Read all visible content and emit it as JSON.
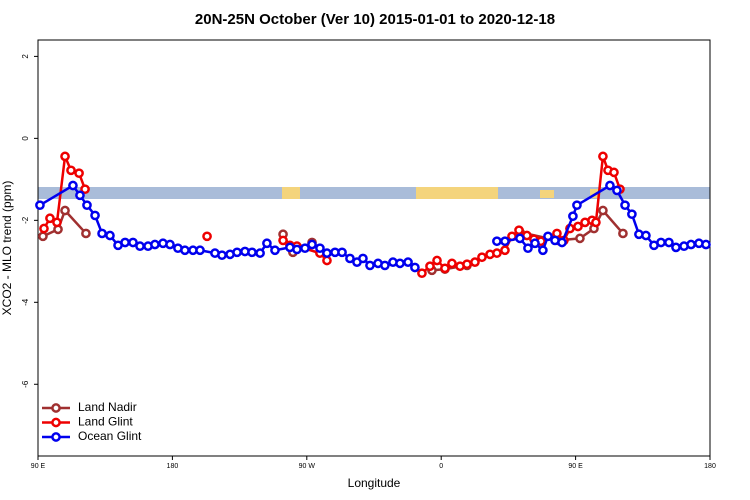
{
  "chart_data": {
    "type": "line",
    "title": "20N-25N October (Ver 10)   2015-01-01 to 2020-12-18",
    "xlabel": "Longitude",
    "ylabel": "XCO2 - MLO trend (ppm)",
    "xlim": [
      90,
      540
    ],
    "ylim": [
      -7.75,
      2.4
    ],
    "xticks": [
      {
        "value": 90,
        "label": "90 E"
      },
      {
        "value": 180,
        "label": "180"
      },
      {
        "value": 270,
        "label": "90 W"
      },
      {
        "value": 360,
        "label": "0"
      },
      {
        "value": 450,
        "label": "90 E"
      },
      {
        "value": 540,
        "label": "180"
      }
    ],
    "yticks": [
      -6,
      -4,
      -2,
      0,
      2
    ],
    "legend": "bottomleft",
    "series": [
      {
        "name": "Land Nadir",
        "color": "#a03030",
        "x": [
          93.3,
          103.4,
          108.1,
          122.1,
          null,
          254.1,
          260.7,
          273.5,
          null,
          353.8,
          362.5,
          377.3,
          null,
          412.7,
          438.2,
          452.9,
          462.3,
          468.3,
          481.7
        ],
        "values": [
          -2.39,
          -2.22,
          -1.76,
          -2.32,
          null,
          -2.34,
          -2.78,
          -2.54,
          null,
          -3.22,
          -3.19,
          -3.1,
          null,
          -2.29,
          -2.49,
          -2.44,
          -2.2,
          -1.76,
          -2.32
        ]
      },
      {
        "name": "Land Glint",
        "color": "#ee0000",
        "x": [
          94.0,
          98.0,
          102.7,
          108.1,
          112.1,
          117.5,
          121.5,
          null,
          203.2,
          null,
          254.1,
          258.7,
          263.4,
          278.8,
          283.5,
          null,
          347.1,
          352.5,
          357.2,
          362.5,
          367.2,
          372.6,
          377.3,
          382.6,
          387.3,
          392.7,
          397.3,
          402.7,
          407.4,
          412.1,
          417.4,
          422.1,
          426.8,
          437.5,
          442.2,
          446.2,
          451.6,
          456.3,
          461.0,
          463.6,
          468.3,
          471.7,
          475.7,
          479.7
        ],
        "values": [
          -2.2,
          -1.95,
          -2.05,
          -0.44,
          -0.78,
          -0.85,
          -1.24,
          null,
          -2.39,
          null,
          -2.49,
          -2.61,
          -2.63,
          -2.8,
          -2.98,
          null,
          -3.29,
          -3.12,
          -2.98,
          -3.17,
          -3.05,
          -3.12,
          -3.07,
          -3.02,
          -2.9,
          -2.83,
          -2.8,
          -2.73,
          -2.39,
          -2.24,
          -2.37,
          -2.46,
          -2.51,
          -2.32,
          -2.49,
          -2.2,
          -2.15,
          -2.05,
          -2.0,
          -2.05,
          -0.44,
          -0.78,
          -0.83,
          -1.24
        ]
      },
      {
        "name": "Ocean Glint",
        "color": "#0000ee",
        "x": [
          91.3,
          113.4,
          118.1,
          122.8,
          128.2,
          132.9,
          138.2,
          143.6,
          148.3,
          153.6,
          158.3,
          163.7,
          168.3,
          173.7,
          178.4,
          183.7,
          188.4,
          193.8,
          198.5,
          208.5,
          213.2,
          218.6,
          223.3,
          228.6,
          233.3,
          238.7,
          243.3,
          248.7,
          258.7,
          263.4,
          268.8,
          273.5,
          278.8,
          283.5,
          288.9,
          293.6,
          298.9,
          303.6,
          307.6,
          312.3,
          317.7,
          322.3,
          327.7,
          332.4,
          337.8,
          342.4,
          null,
          397.3,
          402.7,
          412.7,
          418.1,
          422.8,
          428.1,
          431.5,
          436.2,
          440.9,
          448.2,
          450.9,
          473.0,
          477.7,
          483.1,
          487.7,
          492.4,
          497.1,
          502.5,
          507.2,
          512.5,
          517.2,
          522.6,
          527.3,
          532.6,
          537.3
        ],
        "values": [
          -1.63,
          -1.15,
          -1.39,
          -1.63,
          -1.88,
          -2.32,
          -2.37,
          -2.61,
          -2.54,
          -2.54,
          -2.63,
          -2.63,
          -2.59,
          -2.56,
          -2.59,
          -2.68,
          -2.73,
          -2.73,
          -2.73,
          -2.8,
          -2.85,
          -2.83,
          -2.78,
          -2.76,
          -2.78,
          -2.8,
          -2.56,
          -2.73,
          -2.66,
          -2.71,
          -2.68,
          -2.59,
          -2.68,
          -2.8,
          -2.78,
          -2.78,
          -2.93,
          -3.02,
          -2.93,
          -3.1,
          -3.05,
          -3.1,
          -3.02,
          -3.05,
          -3.02,
          -3.15,
          null,
          -2.51,
          -2.51,
          -2.44,
          -2.68,
          -2.56,
          -2.73,
          -2.39,
          -2.49,
          -2.54,
          -1.9,
          -1.63,
          -1.15,
          -1.27,
          -1.63,
          -1.85,
          -2.34,
          -2.37,
          -2.61,
          -2.54,
          -2.54,
          -2.66,
          -2.63,
          -2.59,
          -2.56,
          -2.59
        ]
      }
    ]
  }
}
